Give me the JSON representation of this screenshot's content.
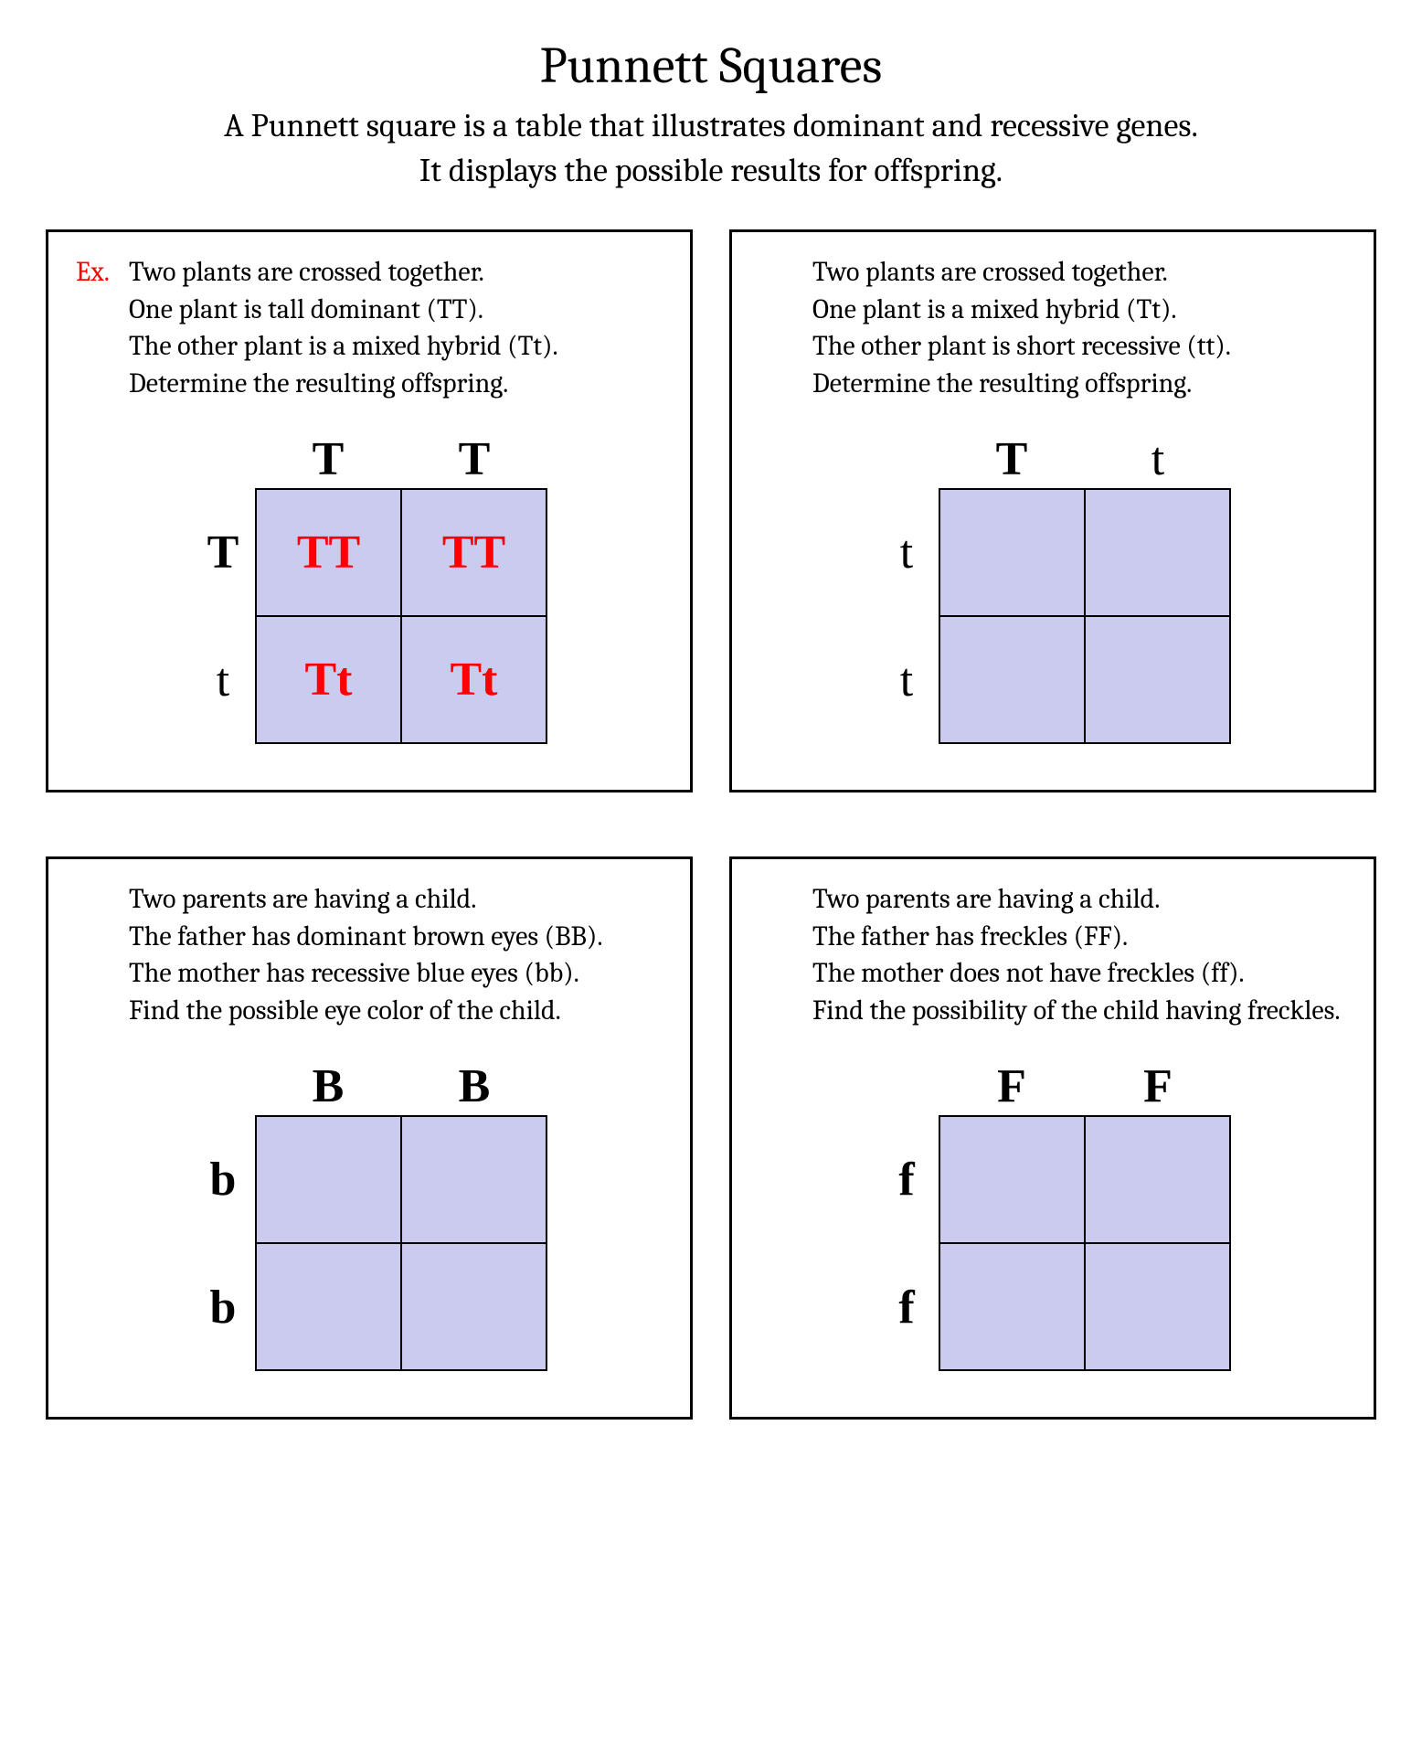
{
  "title": "Punnett Squares",
  "subtitle_line1": "A Punnett square is a table that illustrates dominant and recessive genes.",
  "subtitle_line2": "It displays the possible results for offspring.",
  "colors": {
    "cell_fill": "#cbcbf0",
    "answer_text": "#ff0000",
    "ex_label": "#ff0000",
    "border": "#000000",
    "background": "#ffffff",
    "text": "#000000"
  },
  "fonts": {
    "body_family": "Cambria, Georgia, 'Times New Roman', serif",
    "grid_family": "'Times New Roman', serif",
    "title_size_pt": 42,
    "subtitle_size_pt": 27,
    "problem_size_pt": 22,
    "allele_size_pt": 39
  },
  "problems": [
    {
      "ex_label": "Ex.",
      "lines": [
        "Two plants are crossed together.",
        "One plant is tall dominant (TT).",
        "The other plant is a mixed hybrid (Tt).",
        "Determine the resulting offspring."
      ],
      "top_alleles": [
        "T",
        "T"
      ],
      "top_bold": [
        true,
        true
      ],
      "left_alleles": [
        "T",
        "t"
      ],
      "left_bold": [
        true,
        false
      ],
      "cells": [
        "TT",
        "TT",
        "Tt",
        "Tt"
      ],
      "show_answers": true
    },
    {
      "ex_label": "",
      "lines": [
        "Two plants are crossed together.",
        "One plant is a mixed hybrid (Tt).",
        "The other plant is short recessive (tt).",
        "Determine the resulting offspring."
      ],
      "top_alleles": [
        "T",
        "t"
      ],
      "top_bold": [
        true,
        false
      ],
      "left_alleles": [
        "t",
        "t"
      ],
      "left_bold": [
        false,
        false
      ],
      "cells": [
        "",
        "",
        "",
        ""
      ],
      "show_answers": false
    },
    {
      "ex_label": "",
      "lines": [
        "Two parents are having a child.",
        "The father has dominant brown eyes (BB).",
        "The mother has recessive blue eyes (bb).",
        "Find the possible eye color of the child."
      ],
      "top_alleles": [
        "B",
        "B"
      ],
      "top_bold": [
        true,
        true
      ],
      "left_alleles": [
        "b",
        "b"
      ],
      "left_bold": [
        true,
        true
      ],
      "cells": [
        "",
        "",
        "",
        ""
      ],
      "show_answers": false
    },
    {
      "ex_label": "",
      "lines": [
        "Two parents are having a child.",
        "The father has freckles (FF).",
        "The mother does not have freckles (ff).",
        "Find the possibility of the child having freckles."
      ],
      "top_alleles": [
        "F",
        "F"
      ],
      "top_bold": [
        true,
        true
      ],
      "left_alleles": [
        "f",
        "f"
      ],
      "left_bold": [
        true,
        true
      ],
      "cells": [
        "",
        "",
        "",
        ""
      ],
      "show_answers": false
    }
  ]
}
